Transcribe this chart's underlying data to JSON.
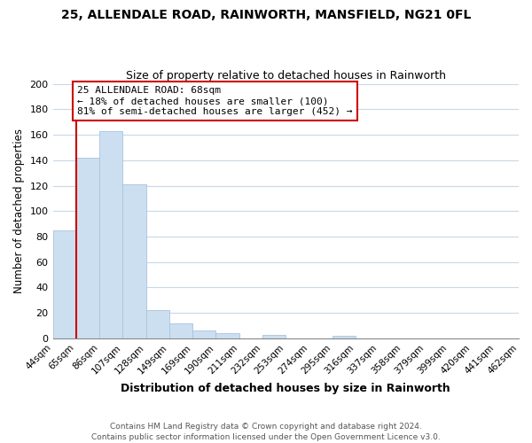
{
  "title": "25, ALLENDALE ROAD, RAINWORTH, MANSFIELD, NG21 0FL",
  "subtitle": "Size of property relative to detached houses in Rainworth",
  "xlabel": "Distribution of detached houses by size in Rainworth",
  "ylabel": "Number of detached properties",
  "bar_values": [
    85,
    142,
    163,
    121,
    22,
    12,
    6,
    4,
    0,
    3,
    0,
    0,
    2,
    0,
    0,
    0,
    0,
    0,
    0,
    0
  ],
  "bar_labels": [
    "44sqm",
    "65sqm",
    "86sqm",
    "107sqm",
    "128sqm",
    "149sqm",
    "169sqm",
    "190sqm",
    "211sqm",
    "232sqm",
    "253sqm",
    "274sqm",
    "295sqm",
    "316sqm",
    "337sqm",
    "358sqm",
    "379sqm",
    "399sqm",
    "420sqm",
    "441sqm",
    "462sqm"
  ],
  "bar_color": "#ccdff0",
  "bar_edge_color": "#a8c4dc",
  "property_line_color": "#cc0000",
  "annotation_line1": "25 ALLENDALE ROAD: 68sqm",
  "annotation_line2": "← 18% of detached houses are smaller (100)",
  "annotation_line3": "81% of semi-detached houses are larger (452) →",
  "annotation_box_color": "#ffffff",
  "annotation_box_edge": "#cc0000",
  "ylim": [
    0,
    200
  ],
  "yticks": [
    0,
    20,
    40,
    60,
    80,
    100,
    120,
    140,
    160,
    180,
    200
  ],
  "footer_line1": "Contains HM Land Registry data © Crown copyright and database right 2024.",
  "footer_line2": "Contains public sector information licensed under the Open Government Licence v3.0.",
  "background_color": "#ffffff",
  "grid_color": "#c8d8e8"
}
